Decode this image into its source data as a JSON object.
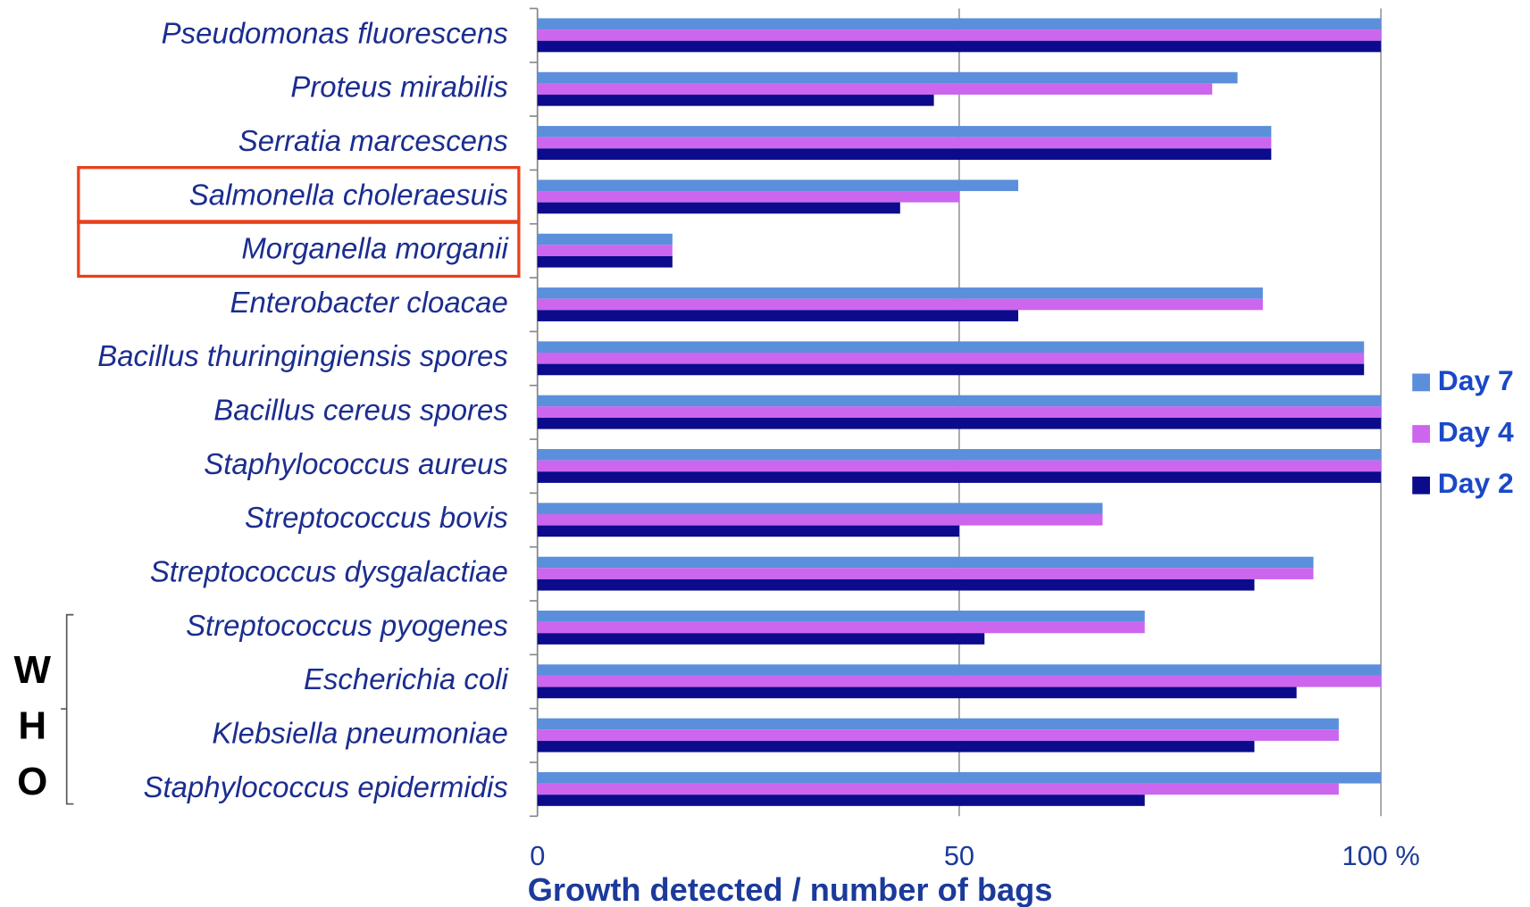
{
  "chart_data": {
    "type": "bar",
    "orientation": "horizontal",
    "x_label": "Growth detected / number of bags",
    "categories": [
      "Pseudomonas fluorescens",
      "Proteus mirabilis",
      "Serratia marcescens",
      "Salmonella choleraesuis",
      "Morganella morganii",
      "Enterobacter cloacae",
      "Bacillus thuringingiensis spores",
      "Bacillus cereus spores",
      "Staphylococcus aureus",
      "Streptococcus bovis",
      "Streptococcus dysgalactiae",
      "Streptococcus pyogenes",
      "Escherichia coli",
      "Klebsiella pneumoniae",
      "Staphylococcus epidermidis"
    ],
    "series": [
      {
        "name": "Day 7",
        "color": "#5b8fdb",
        "values": [
          100,
          83,
          87,
          57,
          16,
          86,
          98,
          100,
          100,
          67,
          92,
          72,
          100,
          95,
          100
        ]
      },
      {
        "name": "Day 4",
        "color": "#cc66ee",
        "values": [
          100,
          80,
          87,
          50,
          16,
          86,
          98,
          100,
          100,
          67,
          92,
          72,
          100,
          95,
          95
        ]
      },
      {
        "name": "Day 2",
        "color": "#0b0b8c",
        "values": [
          100,
          47,
          87,
          43,
          16,
          57,
          98,
          100,
          100,
          50,
          85,
          53,
          90,
          85,
          72
        ]
      }
    ],
    "xlim": [
      0,
      100
    ],
    "xticks": [
      0,
      50,
      {
        "value": 100,
        "label": "100 %"
      }
    ],
    "grid": true,
    "legend": "right",
    "highlight": [
      3,
      4
    ],
    "highlight_color": "#e8401c",
    "bracket_label": [
      "W",
      "H",
      "O"
    ]
  }
}
